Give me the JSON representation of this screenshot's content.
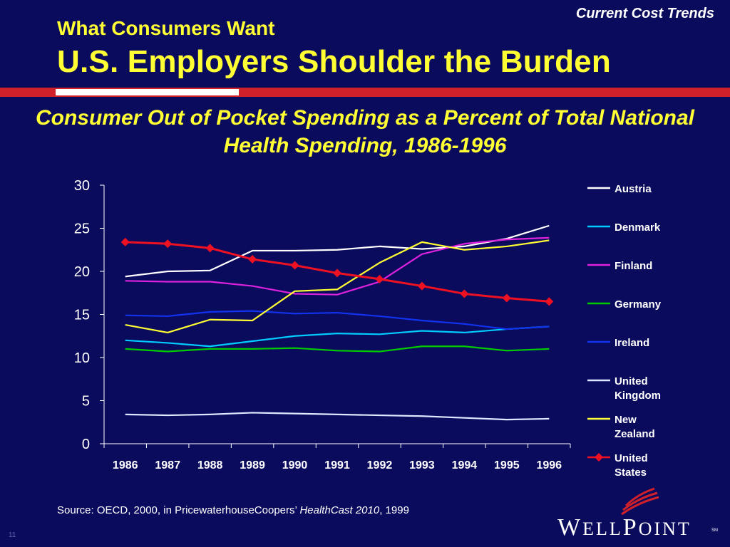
{
  "slide": {
    "corner_label": "Current Cost Trends",
    "title_top": "What Consumers Want",
    "title_main": "U.S. Employers Shoulder the Burden",
    "source_prefix": "Source: OECD, 2000, in PricewaterhouseCoopers’ ",
    "source_italic": "HealthCast 2010",
    "source_suffix": ", 1999",
    "page_number": "11",
    "logo": {
      "w1": "W",
      "w2": "ELL",
      "w3": "P",
      "w4": "OINT",
      "tm": "SM"
    }
  },
  "colors": {
    "background": "#0b0b5e",
    "title": "#ffff33",
    "accent_red": "#d0202a"
  },
  "chart_data": {
    "type": "line",
    "title": "Consumer Out of Pocket Spending as a Percent of Total National Health Spending, 1986-1996",
    "x": [
      "1986",
      "1987",
      "1988",
      "1989",
      "1990",
      "1991",
      "1992",
      "1993",
      "1994",
      "1995",
      "1996"
    ],
    "ylim": [
      0,
      30
    ],
    "yticks": [
      0,
      5,
      10,
      15,
      20,
      25,
      30
    ],
    "grid": false,
    "legend": "right",
    "series": [
      {
        "name": "Austria",
        "color": "#ffffff",
        "marker": false,
        "values": [
          19.4,
          20.0,
          20.1,
          22.4,
          22.4,
          22.5,
          22.9,
          22.6,
          22.9,
          23.8,
          25.3
        ]
      },
      {
        "name": "Denmark",
        "color": "#00ccff",
        "marker": false,
        "values": [
          12.0,
          11.7,
          11.3,
          11.9,
          12.5,
          12.8,
          12.7,
          13.1,
          12.9,
          13.3,
          13.6
        ]
      },
      {
        "name": "Finland",
        "color": "#dd22dd",
        "marker": false,
        "values": [
          18.9,
          18.8,
          18.8,
          18.3,
          17.4,
          17.3,
          18.8,
          22.0,
          23.2,
          23.7,
          23.9
        ]
      },
      {
        "name": "Germany",
        "color": "#00cc00",
        "marker": false,
        "values": [
          11.0,
          10.7,
          11.0,
          11.0,
          11.1,
          10.8,
          10.7,
          11.3,
          11.3,
          10.8,
          11.0
        ]
      },
      {
        "name": "Ireland",
        "color": "#1133ee",
        "marker": false,
        "values": [
          14.9,
          14.8,
          15.3,
          15.4,
          15.1,
          15.2,
          14.8,
          14.3,
          13.9,
          13.3,
          13.6
        ]
      },
      {
        "name": "United Kingdom",
        "color": "#e0e8ff",
        "marker": false,
        "values": [
          3.4,
          3.3,
          3.4,
          3.6,
          3.5,
          3.4,
          3.3,
          3.2,
          3.0,
          2.8,
          2.9
        ]
      },
      {
        "name": "New Zealand",
        "color": "#ffff33",
        "marker": false,
        "values": [
          13.8,
          12.9,
          14.4,
          14.3,
          17.7,
          17.9,
          21.0,
          23.4,
          22.5,
          22.9,
          23.6
        ]
      },
      {
        "name": "United States",
        "color": "#ee1122",
        "marker": true,
        "values": [
          23.4,
          23.2,
          22.7,
          21.4,
          20.7,
          19.8,
          19.1,
          18.3,
          17.4,
          16.9,
          16.5
        ]
      }
    ]
  }
}
